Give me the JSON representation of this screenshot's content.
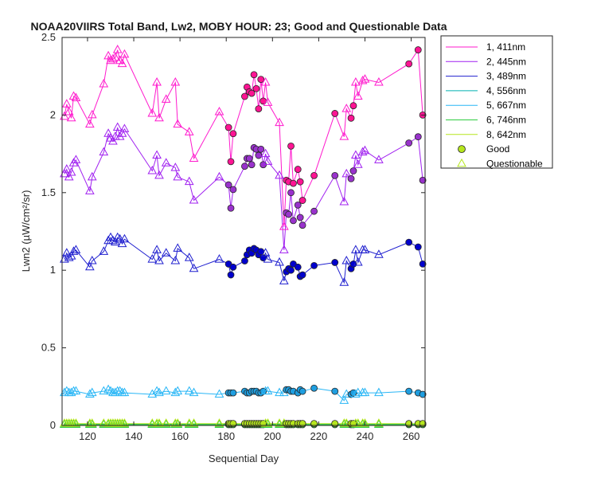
{
  "chart_data": {
    "type": "line",
    "title": "NOAA20VIIRS Total Band, Lw2, MOBY HOUR: 23;  Good and Questionable Data",
    "xlabel": "Sequential Day",
    "ylabel": "Lwn2 (µW/cm²/sr)",
    "xlim": [
      109,
      266
    ],
    "ylim": [
      0,
      2.5
    ],
    "xticks": [
      120,
      140,
      160,
      180,
      200,
      220,
      240,
      260
    ],
    "xtick_labels": [
      "120",
      "140",
      "160",
      "180",
      "200",
      "220",
      "240",
      "260"
    ],
    "yticks": [
      0,
      0.5,
      1,
      1.5,
      2,
      2.5
    ],
    "ytick_labels": [
      "0",
      "0.5",
      "1",
      "1.5",
      "2",
      "2.5"
    ],
    "grid": false,
    "legend_position": "outside-top-right",
    "x": [
      110,
      111,
      112,
      113,
      114,
      115,
      121,
      122,
      127,
      129,
      130,
      131,
      132,
      133,
      134,
      135,
      136,
      148,
      150,
      151,
      154,
      158,
      159,
      164,
      166,
      177,
      181,
      182,
      183,
      188,
      189,
      190,
      191,
      192,
      193,
      194,
      195,
      196,
      197,
      198,
      203,
      205,
      206,
      207,
      208,
      209,
      211,
      212,
      213,
      218,
      227,
      231,
      232,
      234,
      235,
      236,
      237,
      239,
      240,
      246,
      259,
      263,
      265
    ],
    "q": [
      1,
      1,
      1,
      1,
      1,
      1,
      1,
      1,
      1,
      1,
      1,
      1,
      1,
      1,
      1,
      1,
      1,
      1,
      1,
      1,
      1,
      1,
      1,
      1,
      1,
      1,
      0,
      0,
      0,
      0,
      0,
      0,
      0,
      0,
      0,
      0,
      0,
      0,
      1,
      1,
      1,
      1,
      0,
      0,
      0,
      0,
      0,
      0,
      0,
      0,
      0,
      1,
      1,
      0,
      0,
      1,
      1,
      1,
      1,
      1,
      0,
      0,
      0
    ],
    "series": [
      {
        "name": "1, 411nm",
        "color": "#ff1acd",
        "marker_color": "#ff1493",
        "values": [
          1.99,
          2.07,
          2.02,
          1.98,
          2.12,
          2.11,
          1.94,
          2.0,
          2.2,
          2.38,
          2.35,
          2.36,
          2.37,
          2.42,
          2.35,
          2.33,
          2.39,
          2.01,
          2.21,
          1.98,
          2.1,
          2.21,
          1.94,
          1.89,
          1.72,
          2.02,
          1.92,
          1.7,
          1.88,
          2.12,
          2.18,
          2.15,
          2.14,
          2.26,
          2.17,
          2.04,
          2.23,
          2.09,
          2.21,
          2.08,
          1.95,
          1.28,
          1.58,
          1.57,
          1.8,
          1.56,
          1.65,
          1.57,
          1.45,
          1.61,
          2.01,
          1.86,
          2.04,
          1.98,
          2.06,
          2.21,
          2.12,
          2.22,
          2.23,
          2.21,
          2.33,
          2.42,
          2.0
        ]
      },
      {
        "name": "2, 445nm",
        "color": "#a020f0",
        "marker_color": "#9932cc",
        "values": [
          1.62,
          1.65,
          1.6,
          1.63,
          1.69,
          1.71,
          1.51,
          1.6,
          1.76,
          1.88,
          1.85,
          1.83,
          1.86,
          1.92,
          1.86,
          1.88,
          1.91,
          1.64,
          1.74,
          1.61,
          1.69,
          1.66,
          1.6,
          1.57,
          1.45,
          1.6,
          1.55,
          1.4,
          1.52,
          1.67,
          1.72,
          1.72,
          1.68,
          1.79,
          1.78,
          1.74,
          1.78,
          1.68,
          1.75,
          1.7,
          1.61,
          1.13,
          1.37,
          1.36,
          1.5,
          1.32,
          1.42,
          1.34,
          1.29,
          1.38,
          1.61,
          1.44,
          1.62,
          1.59,
          1.64,
          1.74,
          1.68,
          1.76,
          1.77,
          1.71,
          1.82,
          1.86,
          1.58
        ]
      },
      {
        "name": "3, 489nm",
        "color": "#1f1fcf",
        "marker_color": "#0000cd",
        "values": [
          1.07,
          1.11,
          1.08,
          1.09,
          1.12,
          1.13,
          1.02,
          1.06,
          1.12,
          1.19,
          1.21,
          1.19,
          1.18,
          1.21,
          1.2,
          1.17,
          1.2,
          1.07,
          1.13,
          1.06,
          1.11,
          1.06,
          1.14,
          1.08,
          1.01,
          1.07,
          1.04,
          0.97,
          1.02,
          1.06,
          1.1,
          1.13,
          1.11,
          1.14,
          1.13,
          1.1,
          1.12,
          1.08,
          1.11,
          1.07,
          1.05,
          0.93,
          0.99,
          1.01,
          1.0,
          1.04,
          1.02,
          0.96,
          0.97,
          1.03,
          1.05,
          0.92,
          1.06,
          1.01,
          1.04,
          1.13,
          1.05,
          1.13,
          1.13,
          1.1,
          1.18,
          1.15,
          1.04
        ]
      },
      {
        "name": "4, 556nm",
        "color": "#00b0b0",
        "marker_color": "#00b0b0",
        "values": [
          0.008,
          0.008,
          0.008,
          0.008,
          0.008,
          0.008,
          0.008,
          0.008,
          0.008,
          0.008,
          0.008,
          0.008,
          0.008,
          0.008,
          0.008,
          0.008,
          0.008,
          0.008,
          0.008,
          0.008,
          0.008,
          0.008,
          0.008,
          0.008,
          0.008,
          0.008,
          0.008,
          0.008,
          0.008,
          0.008,
          0.008,
          0.008,
          0.008,
          0.008,
          0.008,
          0.008,
          0.008,
          0.008,
          0.008,
          0.008,
          0.008,
          0.008,
          0.008,
          0.008,
          0.008,
          0.008,
          0.008,
          0.008,
          0.008,
          0.008,
          0.008,
          0.008,
          0.008,
          0.008,
          0.008,
          0.008,
          0.008,
          0.008,
          0.008,
          0.008,
          0.008,
          0.008,
          0.008
        ]
      },
      {
        "name": "5, 667nm",
        "color": "#29b6f6",
        "marker_color": "#1e9ee0",
        "values": [
          0.21,
          0.22,
          0.21,
          0.21,
          0.22,
          0.22,
          0.2,
          0.21,
          0.22,
          0.23,
          0.22,
          0.21,
          0.21,
          0.22,
          0.22,
          0.21,
          0.21,
          0.2,
          0.22,
          0.21,
          0.22,
          0.21,
          0.22,
          0.22,
          0.21,
          0.2,
          0.21,
          0.21,
          0.21,
          0.22,
          0.21,
          0.21,
          0.22,
          0.22,
          0.22,
          0.21,
          0.21,
          0.22,
          0.22,
          0.22,
          0.21,
          0.21,
          0.23,
          0.23,
          0.22,
          0.22,
          0.21,
          0.23,
          0.22,
          0.24,
          0.22,
          0.16,
          0.2,
          0.2,
          0.21,
          0.2,
          0.21,
          0.21,
          0.21,
          0.21,
          0.22,
          0.21,
          0.2
        ]
      },
      {
        "name": "6, 746nm",
        "color": "#2ecc40",
        "marker_color": "#2ecc40",
        "values": [
          0.005,
          0.005,
          0.005,
          0.005,
          0.005,
          0.005,
          0.005,
          0.005,
          0.005,
          0.005,
          0.005,
          0.005,
          0.005,
          0.005,
          0.005,
          0.005,
          0.005,
          0.005,
          0.005,
          0.005,
          0.005,
          0.005,
          0.005,
          0.005,
          0.005,
          0.005,
          0.005,
          0.005,
          0.005,
          0.005,
          0.005,
          0.005,
          0.005,
          0.005,
          0.005,
          0.005,
          0.005,
          0.005,
          0.005,
          0.005,
          0.005,
          0.005,
          0.005,
          0.005,
          0.005,
          0.005,
          0.005,
          0.005,
          0.005,
          0.005,
          0.005,
          0.005,
          0.005,
          0.005,
          0.005,
          0.005,
          0.005,
          0.005,
          0.005,
          0.005,
          0.005,
          0.005,
          0.005
        ]
      },
      {
        "name": "8, 642nm",
        "color": "#b5e61d",
        "marker_color": "#b5e61d",
        "values": [
          0.012,
          0.012,
          0.012,
          0.012,
          0.012,
          0.012,
          0.012,
          0.012,
          0.012,
          0.012,
          0.012,
          0.012,
          0.012,
          0.012,
          0.012,
          0.012,
          0.012,
          0.012,
          0.012,
          0.012,
          0.012,
          0.012,
          0.012,
          0.012,
          0.012,
          0.012,
          0.012,
          0.012,
          0.012,
          0.012,
          0.012,
          0.012,
          0.012,
          0.012,
          0.012,
          0.012,
          0.012,
          0.012,
          0.012,
          0.012,
          0.012,
          0.012,
          0.012,
          0.012,
          0.012,
          0.012,
          0.012,
          0.012,
          0.012,
          0.012,
          0.012,
          0.012,
          0.012,
          0.012,
          0.012,
          0.012,
          0.012,
          0.012,
          0.012,
          0.012,
          0.012,
          0.012,
          0.012
        ]
      }
    ],
    "legend_markers": [
      {
        "name": "Good",
        "shape": "circle",
        "color": "#b5e61d"
      },
      {
        "name": "Questionable",
        "shape": "triangle",
        "color": "#b5e61d"
      }
    ]
  }
}
